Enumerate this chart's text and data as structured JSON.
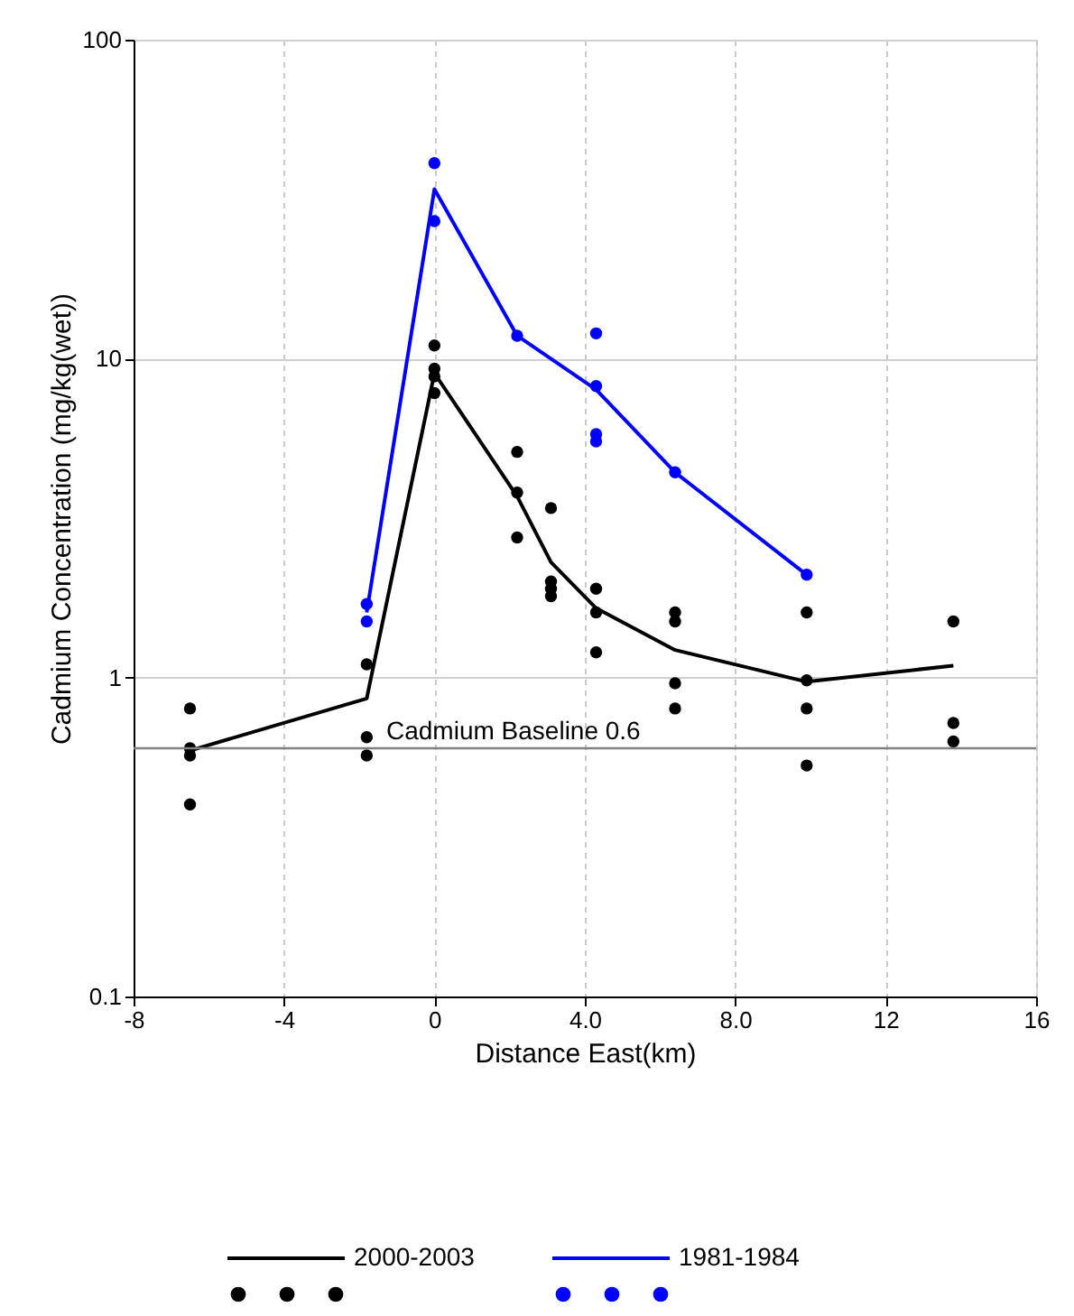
{
  "chart_data": {
    "type": "line",
    "xlabel": "Distance East(km)",
    "ylabel": "Cadmium Concentration (mg/kg(wet))",
    "xlim": [
      -8,
      16
    ],
    "xticks": [
      -8,
      -4,
      0,
      {
        "value": 4,
        "label": "4.0"
      },
      {
        "value": 8,
        "label": "8.0"
      },
      12,
      16
    ],
    "ylim": [
      0.1,
      100
    ],
    "yticks": [
      0.1,
      1,
      10,
      100
    ],
    "log": "y",
    "grid": true,
    "legend": "bottom",
    "series": [
      {
        "name": "2000-2003",
        "type": "line",
        "color": "#000000",
        "x": [
          -6.5,
          -1.8,
          0,
          2.2,
          3.1,
          4.3,
          6.4,
          9.9,
          13.8
        ],
        "values": [
          0.59,
          0.86,
          9,
          3.7,
          2.3,
          1.65,
          1.22,
          0.97,
          1.09
        ]
      },
      {
        "type": "scatter",
        "color": "#000000",
        "marker": "circle",
        "x": [
          -6.5,
          -6.5,
          -6.5,
          -6.5,
          -1.8,
          -1.8,
          -1.8,
          0,
          0,
          0,
          0,
          2.2,
          2.2,
          2.2,
          3.1,
          3.1,
          3.1,
          3.1,
          4.3,
          4.3,
          4.3,
          6.4,
          6.4,
          6.4,
          6.4,
          9.9,
          9.9,
          9.9,
          9.9,
          13.8,
          13.8,
          13.8
        ],
        "values": [
          0.8,
          0.6,
          0.57,
          0.4,
          1.1,
          0.65,
          0.57,
          11,
          9.3,
          8.8,
          7.8,
          5.1,
          3.8,
          2.75,
          3.4,
          2.0,
          1.9,
          1.8,
          1.9,
          1.6,
          1.2,
          1.6,
          1.5,
          0.96,
          0.8,
          1.6,
          0.98,
          0.8,
          0.53,
          1.5,
          0.72,
          0.63
        ]
      },
      {
        "name": "1981-1984",
        "type": "line",
        "color": "#0000ff",
        "x": [
          -1.8,
          0,
          2.2,
          4.3,
          6.4,
          9.9
        ],
        "values": [
          1.6,
          34,
          11.8,
          8,
          4.4,
          2.1
        ]
      },
      {
        "type": "scatter",
        "color": "#0000ff",
        "marker": "circle",
        "x": [
          -1.8,
          -1.8,
          0,
          0,
          2.2,
          4.3,
          4.3,
          4.3,
          4.3,
          6.4,
          9.9
        ],
        "values": [
          1.7,
          1.5,
          41,
          27,
          11.8,
          12,
          8.2,
          5.8,
          5.5,
          4.4,
          2.1
        ]
      }
    ],
    "ref_lines": [
      {
        "axis": "y",
        "value": 0.6,
        "label": "Cadmium Baseline  0.6",
        "color": "#808080",
        "line_style": "solid"
      }
    ]
  }
}
